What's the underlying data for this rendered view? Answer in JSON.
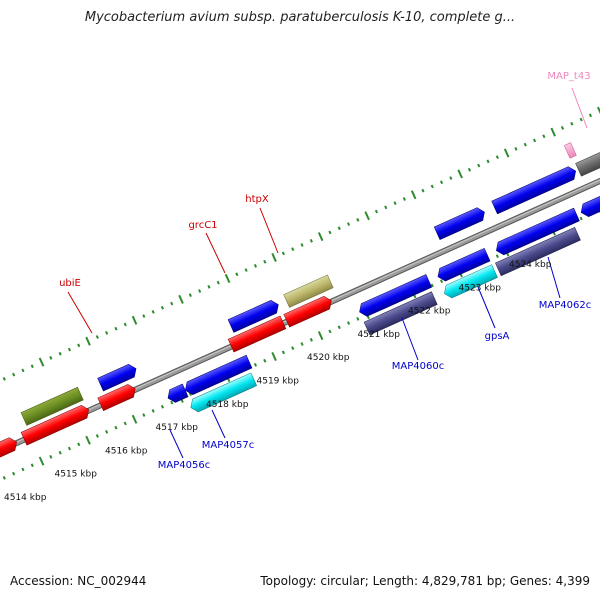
{
  "title": "Mycobacterium avium subsp. paratuberculosis K-10, complete g...",
  "footer": {
    "accession": "Accession: NC_002944",
    "summary": "Topology: circular; Length: 4,829,781 bp; Genes: 4,399"
  },
  "colors": {
    "backbone": "#8c8c8c",
    "tick": "#2e8b2e",
    "red_label": "#cc0000",
    "blue_label": "#0000cc",
    "pink_label": "#ee88bb"
  },
  "kbp_labels": [
    "4514 kbp",
    "4515 kbp",
    "4516 kbp",
    "4517 kbp",
    "4518 kbp",
    "4519 kbp",
    "4520 kbp",
    "4521 kbp",
    "4522 kbp",
    "4523 kbp",
    "4524 kbp"
  ],
  "gene_labels": {
    "ubiE": "ubiE",
    "grcC1": "grcC1",
    "htpX": "htpX",
    "MAP_t43": "MAP_t43",
    "MAP4056c": "MAP4056c",
    "MAP4057c": "MAP4057c",
    "MAP4060c": "MAP4060c",
    "gpsA": "gpsA",
    "MAP4062c": "MAP4062c"
  }
}
